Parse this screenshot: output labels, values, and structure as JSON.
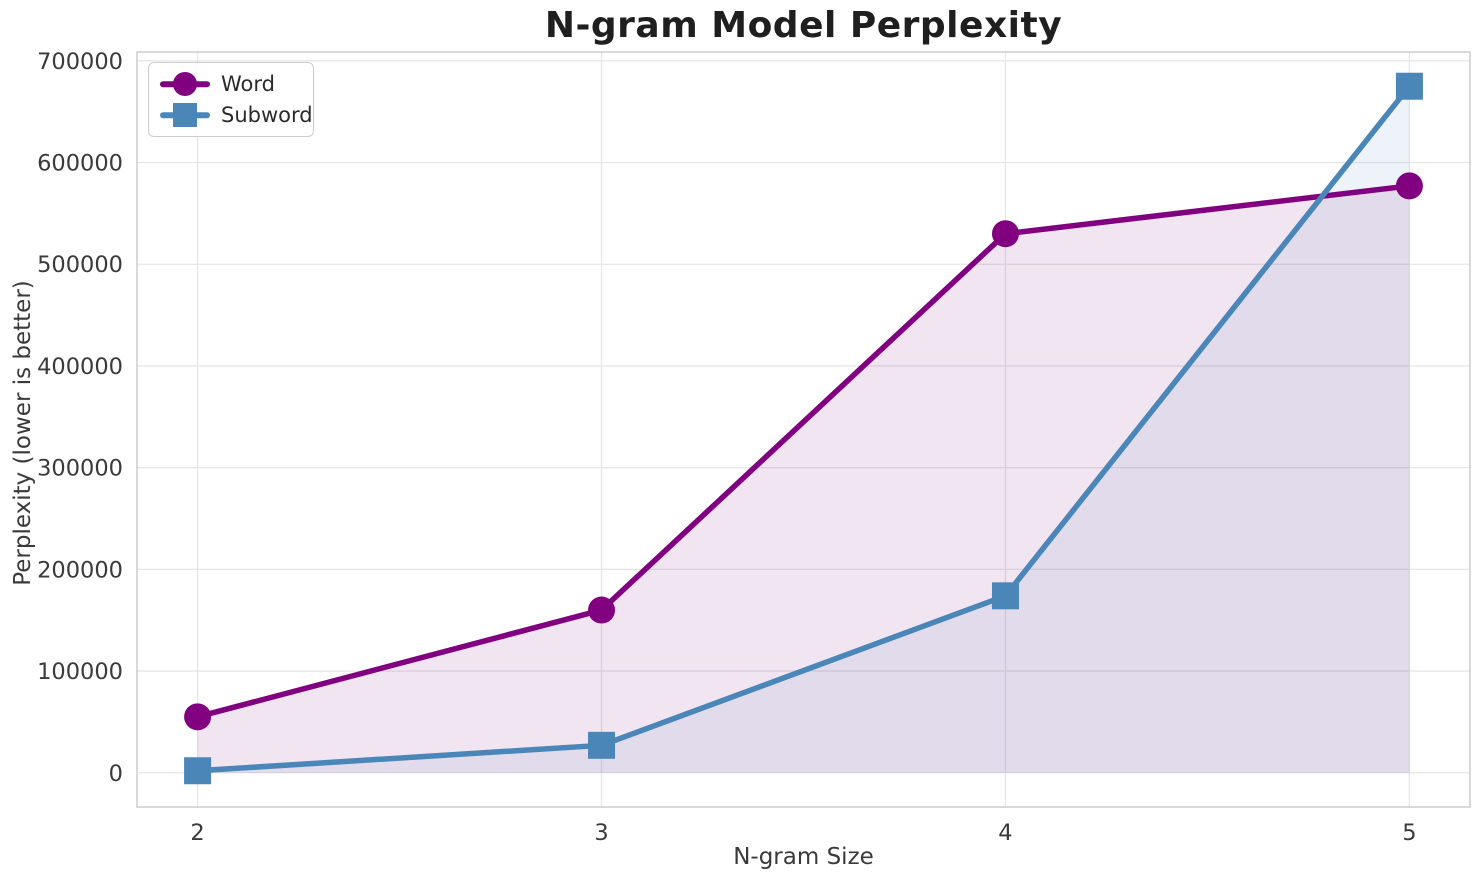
{
  "chart_data": {
    "type": "line",
    "title": "N-gram Model Perplexity",
    "xlabel": "N-gram Size",
    "ylabel": "Perplexity (lower is better)",
    "x": [
      2,
      3,
      4,
      5
    ],
    "series": [
      {
        "name": "Word",
        "marker": "circle",
        "color": "#800080",
        "fill_alpha": 0.1,
        "values": [
          55000,
          160000,
          530000,
          577000
        ]
      },
      {
        "name": "Subword",
        "marker": "square",
        "color": "#4A86B8",
        "fill_alpha": 0.1,
        "values": [
          2000,
          27000,
          174000,
          675000
        ]
      }
    ],
    "xticks": [
      "2",
      "3",
      "4",
      "5"
    ],
    "xtick_values": [
      2,
      3,
      4,
      5
    ],
    "yticks": [
      "0",
      "100000",
      "200000",
      "300000",
      "400000",
      "500000",
      "600000",
      "700000"
    ],
    "ytick_values": [
      0,
      100000,
      200000,
      300000,
      400000,
      500000,
      600000,
      700000
    ],
    "xlim": [
      1.85,
      5.15
    ],
    "ylim": [
      -33650,
      708650
    ],
    "area_baseline": 0,
    "grid": true,
    "legend_position": "upper-left",
    "colors": {
      "grid": "#e6e6e6",
      "spine": "#c9c9c9",
      "tick_text": "#3a3a3a",
      "title_text": "#1f1f1f",
      "background": "#ffffff"
    }
  }
}
